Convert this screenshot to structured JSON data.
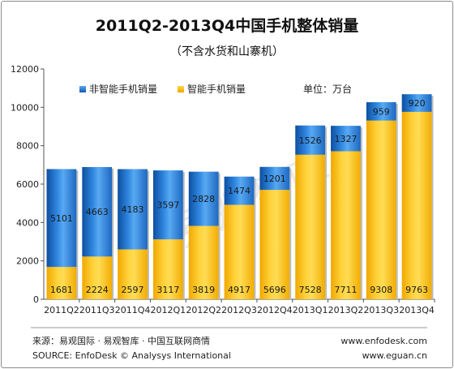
{
  "chart_data": {
    "type": "bar",
    "stacked": true,
    "title": "2011Q2-2013Q4中国手机整体销量",
    "subtitle": "（不含水货和山寨机）",
    "unit_label": "单位：万台",
    "categories": [
      "2011Q2",
      "2011Q3",
      "2011Q4",
      "2012Q1",
      "2012Q2",
      "2012Q3",
      "2012Q4",
      "2013Q1",
      "2013Q2",
      "2013Q3",
      "2013Q4"
    ],
    "series": [
      {
        "name": "智能手机销量",
        "values": [
          1681,
          2224,
          2597,
          3117,
          3819,
          4917,
          5696,
          7528,
          7711,
          9308,
          9763
        ],
        "color": "#f5b400"
      },
      {
        "name": "非智能手机销量",
        "values": [
          5101,
          4663,
          4183,
          3597,
          2828,
          1474,
          1201,
          1526,
          1327,
          959,
          920
        ],
        "color": "#1e70c8"
      }
    ],
    "legend_order": [
      "非智能手机销量",
      "智能手机销量"
    ],
    "ylim": [
      0,
      12000
    ],
    "yticks": [
      0,
      2000,
      4000,
      6000,
      8000,
      10000,
      12000
    ],
    "grid": false,
    "legend_position": "top-left",
    "watermark": "易观智库"
  },
  "footer": {
    "source_cn": "来源：易观国际 · 易观智库 · 中国互联网商情",
    "source_en": "SOURCE: EnfoDesk © Analysys International",
    "url1": "www.enfodesk.com",
    "url2": "www.eguan.cn"
  }
}
